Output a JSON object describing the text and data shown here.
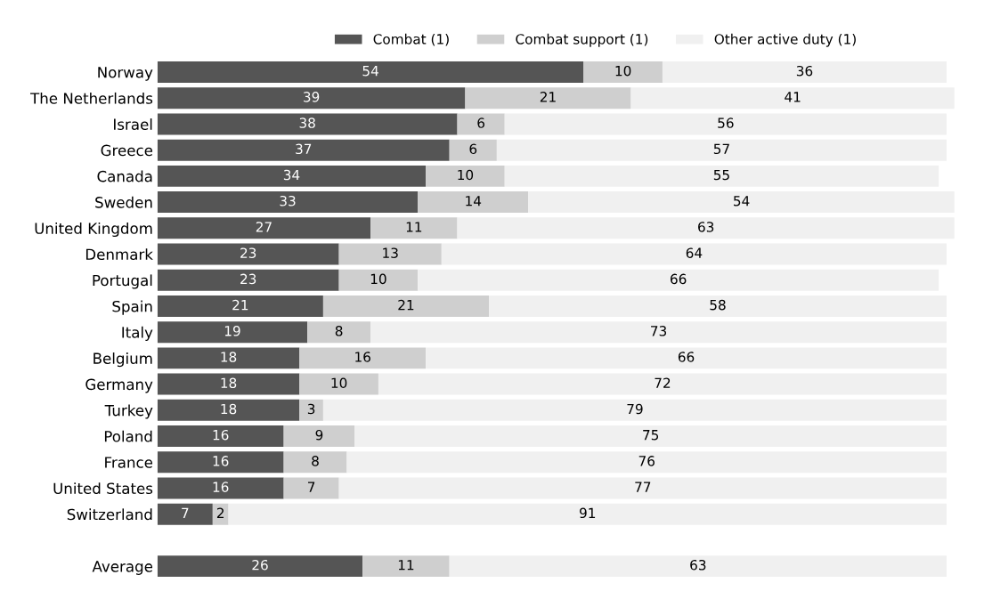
{
  "chart_data": {
    "type": "bar",
    "orientation": "horizontal",
    "stacked": true,
    "data_labels": true,
    "legend": "top",
    "grid": false,
    "tick_labels": "y",
    "categories": [
      "Norway",
      "The Netherlands",
      "Israel",
      "Greece",
      "Canada",
      "Sweden",
      "United Kingdom",
      "Denmark",
      "Portugal",
      "Spain",
      "Italy",
      "Belgium",
      "Germany",
      "Turkey",
      "Poland",
      "France",
      "United States",
      "Switzerland",
      null,
      "Average"
    ],
    "xlim": [
      0,
      101
    ],
    "series": [
      {
        "name": "Combat (1)",
        "color": "#555555",
        "values": [
          54,
          39,
          38,
          37,
          34,
          33,
          27,
          23,
          23,
          21,
          19,
          18,
          18,
          18,
          16,
          16,
          16,
          7,
          null,
          26
        ]
      },
      {
        "name": "Combat support (1)",
        "color": "#cfcfcf",
        "values": [
          10,
          21,
          6,
          6,
          10,
          14,
          11,
          13,
          10,
          21,
          8,
          16,
          10,
          3,
          9,
          8,
          7,
          2,
          null,
          11
        ]
      },
      {
        "name": "Other active duty (1)",
        "color": "#f0f0f0",
        "values": [
          36,
          41,
          56,
          57,
          55,
          54,
          63,
          64,
          66,
          58,
          73,
          66,
          72,
          79,
          75,
          76,
          77,
          91,
          null,
          63
        ]
      }
    ]
  }
}
